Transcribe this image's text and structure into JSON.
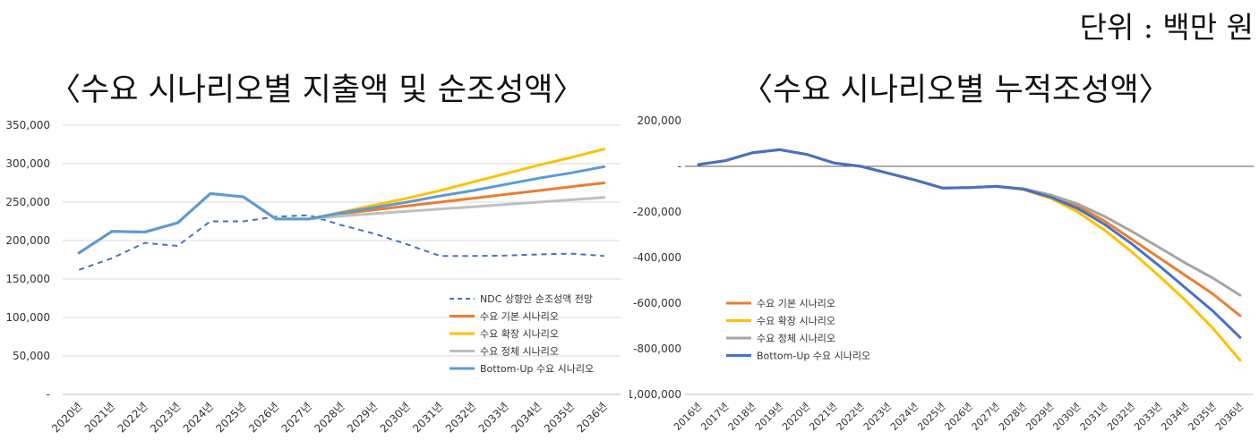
{
  "unit_label": "단위 : 백만 원",
  "chart_data": [
    {
      "type": "line",
      "title": "〈수요 시나리오별 지출액 및 순조성액〉",
      "categories": [
        "2020년",
        "2021년",
        "2022년",
        "2023년",
        "2024년",
        "2025년",
        "2026년",
        "2027년",
        "2028년",
        "2029년",
        "2030년",
        "2031년",
        "2032년",
        "2033년",
        "2034년",
        "2035년",
        "2036년"
      ],
      "ylim": [
        0,
        350000
      ],
      "yticks": [
        "-",
        "50,000",
        "100,000",
        "150,000",
        "200,000",
        "250,000",
        "300,000",
        "350,000"
      ],
      "ytick_values": [
        0,
        50000,
        100000,
        150000,
        200000,
        250000,
        300000,
        350000
      ],
      "grid": true,
      "legend_position": "bottom-right",
      "series": [
        {
          "name": "NDC 상향안 순조성액 전망",
          "color": "#4472C4",
          "dashed": true,
          "values": [
            162000,
            177000,
            197000,
            193000,
            225000,
            225000,
            231000,
            233000,
            220000,
            209000,
            195000,
            180000,
            180000,
            180500,
            182000,
            183000,
            180000
          ]
        },
        {
          "name": "수요 기본 시나리오",
          "color": "#ED7D31",
          "values": [
            184000,
            212000,
            211000,
            223000,
            261000,
            257000,
            228000,
            228000,
            235000,
            240000,
            245000,
            250000,
            255000,
            260000,
            265000,
            270000,
            275000
          ]
        },
        {
          "name": "수요 확장 시나리오",
          "color": "#FFC000",
          "values": [
            184000,
            212000,
            211000,
            223000,
            261000,
            257000,
            228000,
            228000,
            237000,
            246000,
            255000,
            265000,
            276000,
            287000,
            298000,
            308000,
            319000
          ]
        },
        {
          "name": "수요 정체 시나리오",
          "color": "#BFBFBF",
          "values": [
            184000,
            212000,
            211000,
            223000,
            261000,
            257000,
            228000,
            228000,
            232000,
            235000,
            238000,
            241000,
            244000,
            247000,
            250000,
            253000,
            256000
          ]
        },
        {
          "name": "Bottom-Up 수요 시나리오",
          "color": "#5B9BD5",
          "values": [
            184000,
            212000,
            211000,
            223000,
            261000,
            257000,
            228000,
            228000,
            236000,
            243000,
            250000,
            258000,
            265000,
            273000,
            281000,
            288000,
            296000
          ]
        }
      ]
    },
    {
      "type": "line",
      "title": "〈수요 시나리오별 누적조성액〉",
      "categories": [
        "2016년",
        "2017년",
        "2018년",
        "2019년",
        "2020년",
        "2021년",
        "2022년",
        "2023년",
        "2024년",
        "2025년",
        "2026년",
        "2027년",
        "2028년",
        "2029년",
        "2030년",
        "2031년",
        "2032년",
        "2033년",
        "2034년",
        "2035년",
        "2036년"
      ],
      "ylim": [
        -1000000,
        200000
      ],
      "yticks": [
        "-1,000,000",
        "-800,000",
        "-600,000",
        "-400,000",
        "-200,000",
        "-",
        "200,000"
      ],
      "ytick_values": [
        -1000000,
        -800000,
        -600000,
        -400000,
        -200000,
        0,
        200000
      ],
      "grid": false,
      "zero_line": true,
      "legend_position": "bottom-left",
      "series": [
        {
          "name": "수요 기본 시나리오",
          "color": "#ED7D31",
          "values": [
            8000,
            25000,
            60000,
            73000,
            52000,
            15000,
            0,
            -30000,
            -60000,
            -95000,
            -93000,
            -88000,
            -100000,
            -130000,
            -175000,
            -240000,
            -320000,
            -400000,
            -480000,
            -560000,
            -655000
          ]
        },
        {
          "name": "수요 확장 시나리오",
          "color": "#FFC000",
          "values": [
            8000,
            25000,
            60000,
            73000,
            52000,
            15000,
            0,
            -30000,
            -60000,
            -95000,
            -93000,
            -88000,
            -102000,
            -140000,
            -200000,
            -280000,
            -375000,
            -480000,
            -590000,
            -710000,
            -850000
          ]
        },
        {
          "name": "수요 정체 시나리오",
          "color": "#A5A5A5",
          "values": [
            8000,
            25000,
            60000,
            73000,
            52000,
            15000,
            0,
            -30000,
            -60000,
            -95000,
            -93000,
            -88000,
            -98000,
            -125000,
            -165000,
            -220000,
            -285000,
            -355000,
            -425000,
            -490000,
            -565000
          ]
        },
        {
          "name": "Bottom-Up 수요 시나리오",
          "color": "#4472C4",
          "values": [
            8000,
            25000,
            60000,
            73000,
            52000,
            15000,
            0,
            -30000,
            -60000,
            -95000,
            -93000,
            -88000,
            -100000,
            -135000,
            -185000,
            -255000,
            -340000,
            -435000,
            -535000,
            -635000,
            -750000
          ]
        }
      ]
    }
  ]
}
